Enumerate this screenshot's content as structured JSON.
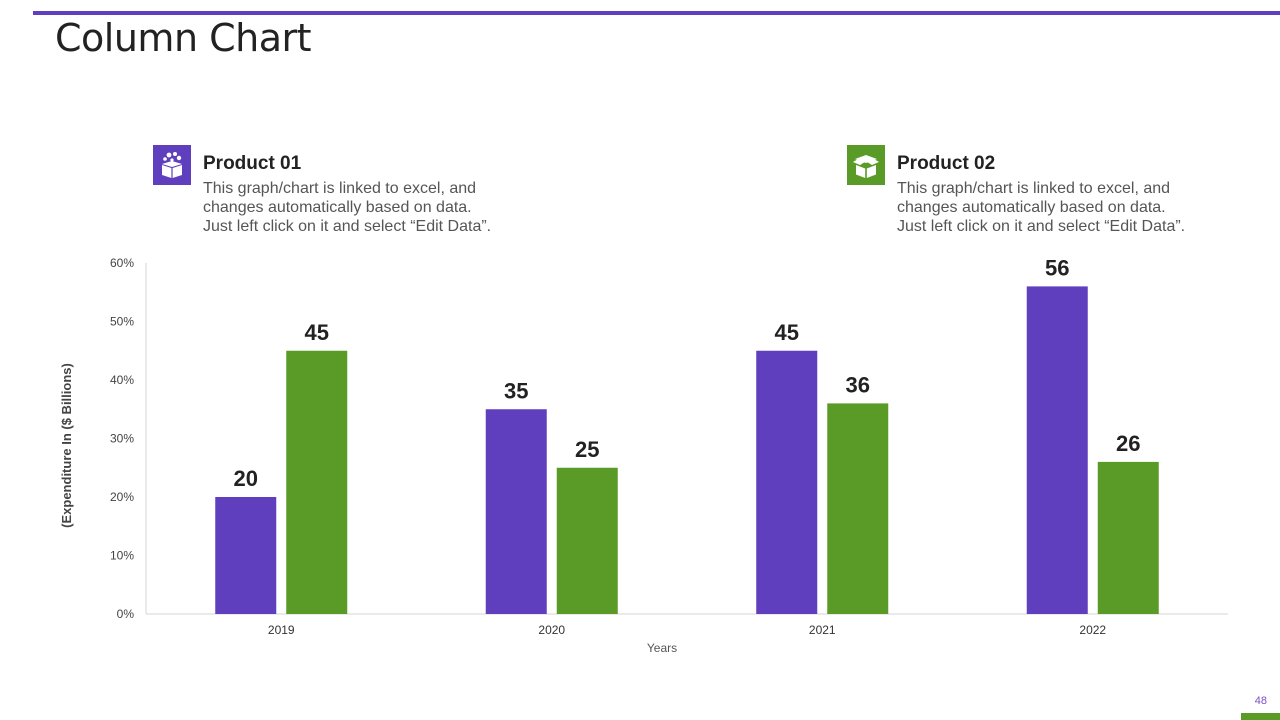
{
  "slide": {
    "title": "Column Chart",
    "page_number": "48",
    "accent_purple": "#5f3fbe",
    "accent_green": "#5a9a27"
  },
  "legend": [
    {
      "name": "Product 01",
      "icon": "boxes-icon",
      "color": "#5f3fbe",
      "lines": [
        "This graph/chart is linked to excel, and",
        "changes automatically based on data.",
        "Just left click on it and select “Edit Data”."
      ]
    },
    {
      "name": "Product 02",
      "icon": "open-box-icon",
      "color": "#5a9a27",
      "lines": [
        "This graph/chart is linked to excel, and",
        "changes automatically based on data.",
        "Just left click on it and select “Edit Data”."
      ]
    }
  ],
  "chart_data": {
    "type": "bar",
    "title": "",
    "categories": [
      "2019",
      "2020",
      "2021",
      "2022"
    ],
    "series": [
      {
        "name": "Product 01",
        "values": [
          20,
          35,
          45,
          56
        ],
        "color": "#5f3fbe"
      },
      {
        "name": "Product 02",
        "values": [
          45,
          25,
          36,
          26
        ],
        "color": "#5a9a27"
      }
    ],
    "xlabel": "Years",
    "ylabel": "(Expenditure In ($ Billions)",
    "ylim": [
      0,
      60
    ],
    "yticks": [
      "0%",
      "10%",
      "20%",
      "30%",
      "40%",
      "50%",
      "60%"
    ],
    "grid": false,
    "legend_position": "top"
  }
}
